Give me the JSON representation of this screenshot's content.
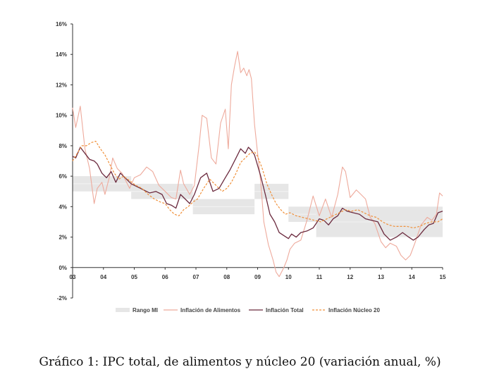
{
  "chart_data": {
    "type": "line",
    "caption": "Gráfico 1: IPC total, de alimentos y núcleo 20 (variación anual, %)",
    "x_ticks": [
      "03",
      "04",
      "05",
      "06",
      "07",
      "08",
      "09",
      "10",
      "11",
      "12",
      "13",
      "14",
      "15"
    ],
    "y_ticks": [
      "16%",
      "14%",
      "12%",
      "10%",
      "8%",
      "6%",
      "4%",
      "2%",
      "0%",
      "-2%"
    ],
    "x_range": [
      2003,
      2015
    ],
    "ylim": [
      -2,
      16
    ],
    "legend": [
      "Rango MI",
      "Inflación de Alimentos",
      "Inflación Total",
      "Inflación Núcleo 20"
    ],
    "colors": {
      "band": "#e6e6e6",
      "food": "#eeaa9c",
      "total": "#6b2a3e",
      "core": "#f0903a",
      "axis": "#333333"
    },
    "target_range": [
      {
        "x_start": 2003.0,
        "x_end": 2004.9,
        "low": 5.0,
        "high": 6.0
      },
      {
        "x_start": 2004.9,
        "x_end": 2006.9,
        "low": 4.5,
        "high": 5.5
      },
      {
        "x_start": 2006.9,
        "x_end": 2008.9,
        "low": 3.5,
        "high": 4.5
      },
      {
        "x_start": 2008.9,
        "x_end": 2010.0,
        "low": 4.5,
        "high": 5.5
      },
      {
        "x_start": 2010.0,
        "x_end": 2010.9,
        "low": 3.0,
        "high": 4.0
      },
      {
        "x_start": 2010.9,
        "x_end": 2015.0,
        "low": 2.0,
        "high": 4.0
      }
    ],
    "series": [
      {
        "name": "Inflación de Alimentos",
        "x": [
          2003.0,
          2003.1,
          2003.25,
          2003.4,
          2003.55,
          2003.7,
          2003.8,
          2003.95,
          2004.05,
          2004.2,
          2004.3,
          2004.45,
          2004.6,
          2004.7,
          2004.85,
          2005.0,
          2005.2,
          2005.4,
          2005.6,
          2005.8,
          2006.0,
          2006.2,
          2006.35,
          2006.5,
          2006.6,
          2006.8,
          2006.95,
          2007.1,
          2007.2,
          2007.35,
          2007.5,
          2007.65,
          2007.8,
          2007.95,
          2008.05,
          2008.15,
          2008.25,
          2008.35,
          2008.45,
          2008.55,
          2008.65,
          2008.72,
          2008.8,
          2008.9,
          2009.0,
          2009.1,
          2009.2,
          2009.35,
          2009.5,
          2009.6,
          2009.7,
          2009.85,
          2009.95,
          2010.05,
          2010.2,
          2010.4,
          2010.6,
          2010.8,
          2011.0,
          2011.2,
          2011.4,
          2011.6,
          2011.75,
          2011.85,
          2012.0,
          2012.2,
          2012.35,
          2012.5,
          2012.65,
          2012.8,
          2013.0,
          2013.15,
          2013.3,
          2013.5,
          2013.65,
          2013.8,
          2013.95,
          2014.1,
          2014.3,
          2014.5,
          2014.65,
          2014.8,
          2014.9,
          2015.0
        ],
        "values": [
          10.5,
          9.2,
          10.6,
          7.8,
          6.5,
          4.2,
          5.2,
          5.6,
          4.8,
          6.0,
          7.2,
          6.5,
          6.2,
          5.8,
          5.2,
          5.9,
          6.1,
          6.6,
          6.3,
          5.4,
          5.0,
          4.6,
          4.5,
          6.4,
          5.5,
          4.8,
          5.4,
          8.0,
          10.0,
          9.8,
          7.2,
          6.8,
          9.5,
          10.4,
          7.8,
          12.0,
          13.2,
          14.2,
          12.8,
          13.1,
          12.6,
          13.0,
          12.4,
          9.4,
          7.5,
          5.6,
          3.0,
          1.5,
          0.5,
          -0.3,
          -0.6,
          0.0,
          0.5,
          1.2,
          1.6,
          1.8,
          3.1,
          4.7,
          3.4,
          4.5,
          3.3,
          4.8,
          6.6,
          6.3,
          4.6,
          5.1,
          4.8,
          4.5,
          3.3,
          2.9,
          1.7,
          1.3,
          1.6,
          1.4,
          0.8,
          0.5,
          0.8,
          1.6,
          2.8,
          3.3,
          3.1,
          3.5,
          4.9,
          4.7
        ]
      },
      {
        "name": "Inflación Total",
        "x": [
          2003.0,
          2003.1,
          2003.25,
          2003.4,
          2003.55,
          2003.7,
          2003.8,
          2003.95,
          2004.1,
          2004.25,
          2004.4,
          2004.55,
          2004.7,
          2004.9,
          2005.1,
          2005.3,
          2005.5,
          2005.7,
          2005.9,
          2006.05,
          2006.2,
          2006.35,
          2006.5,
          2006.65,
          2006.8,
          2006.95,
          2007.15,
          2007.35,
          2007.55,
          2007.75,
          2007.95,
          2008.1,
          2008.3,
          2008.45,
          2008.6,
          2008.7,
          2008.8,
          2008.9,
          2009.0,
          2009.1,
          2009.25,
          2009.4,
          2009.55,
          2009.7,
          2009.85,
          2010.0,
          2010.1,
          2010.25,
          2010.4,
          2010.6,
          2010.8,
          2011.0,
          2011.15,
          2011.3,
          2011.45,
          2011.6,
          2011.75,
          2011.9,
          2012.1,
          2012.3,
          2012.5,
          2012.7,
          2012.9,
          2013.1,
          2013.3,
          2013.5,
          2013.7,
          2013.9,
          2014.05,
          2014.2,
          2014.4,
          2014.55,
          2014.7,
          2014.85,
          2015.0
        ],
        "values": [
          7.3,
          7.2,
          7.9,
          7.5,
          7.1,
          7.0,
          6.8,
          6.2,
          5.9,
          6.3,
          5.6,
          6.2,
          5.9,
          5.5,
          5.3,
          5.1,
          4.9,
          5.0,
          4.8,
          4.2,
          4.1,
          3.9,
          4.8,
          4.5,
          4.2,
          4.8,
          5.9,
          6.2,
          5.0,
          5.2,
          5.9,
          6.4,
          7.2,
          7.8,
          7.5,
          7.9,
          7.7,
          7.4,
          6.7,
          6.0,
          4.8,
          3.5,
          3.0,
          2.3,
          2.1,
          1.9,
          2.2,
          2.0,
          2.3,
          2.4,
          2.6,
          3.2,
          3.1,
          2.8,
          3.2,
          3.4,
          3.9,
          3.7,
          3.6,
          3.5,
          3.2,
          3.1,
          3.0,
          2.2,
          1.8,
          2.0,
          2.3,
          2.0,
          1.8,
          2.0,
          2.5,
          2.8,
          2.9,
          3.6,
          3.7
        ]
      },
      {
        "name": "Inflación Núcleo 20",
        "x": [
          2003.0,
          2003.15,
          2003.3,
          2003.45,
          2003.6,
          2003.75,
          2003.9,
          2004.05,
          2004.2,
          2004.35,
          2004.5,
          2004.65,
          2004.85,
          2005.05,
          2005.25,
          2005.45,
          2005.65,
          2005.85,
          2006.0,
          2006.15,
          2006.3,
          2006.45,
          2006.6,
          2006.75,
          2006.9,
          2007.05,
          2007.25,
          2007.45,
          2007.65,
          2007.85,
          2008.0,
          2008.15,
          2008.3,
          2008.45,
          2008.6,
          2008.75,
          2008.9,
          2009.0,
          2009.15,
          2009.3,
          2009.45,
          2009.6,
          2009.75,
          2009.9,
          2010.05,
          2010.25,
          2010.45,
          2010.65,
          2010.85,
          2011.05,
          2011.25,
          2011.45,
          2011.65,
          2011.85,
          2012.05,
          2012.25,
          2012.45,
          2012.65,
          2012.85,
          2013.05,
          2013.25,
          2013.45,
          2013.65,
          2013.85,
          2014.05,
          2014.25,
          2014.45,
          2014.65,
          2014.85,
          2015.0
        ],
        "values": [
          7.0,
          7.5,
          8.0,
          8.0,
          8.2,
          8.3,
          7.8,
          7.4,
          6.8,
          6.2,
          5.8,
          6.0,
          5.7,
          5.4,
          5.2,
          4.8,
          4.5,
          4.3,
          4.2,
          3.8,
          3.5,
          3.4,
          3.8,
          4.0,
          4.3,
          4.5,
          5.2,
          5.8,
          5.4,
          5.0,
          5.2,
          5.6,
          6.2,
          6.9,
          7.2,
          7.5,
          7.6,
          7.3,
          6.5,
          5.5,
          4.8,
          4.2,
          3.8,
          3.5,
          3.6,
          3.4,
          3.3,
          3.2,
          3.1,
          3.0,
          3.2,
          3.4,
          3.6,
          3.8,
          3.7,
          3.8,
          3.6,
          3.4,
          3.3,
          3.0,
          2.8,
          2.7,
          2.7,
          2.7,
          2.6,
          2.7,
          2.9,
          3.0,
          3.0,
          3.2
        ]
      }
    ]
  }
}
